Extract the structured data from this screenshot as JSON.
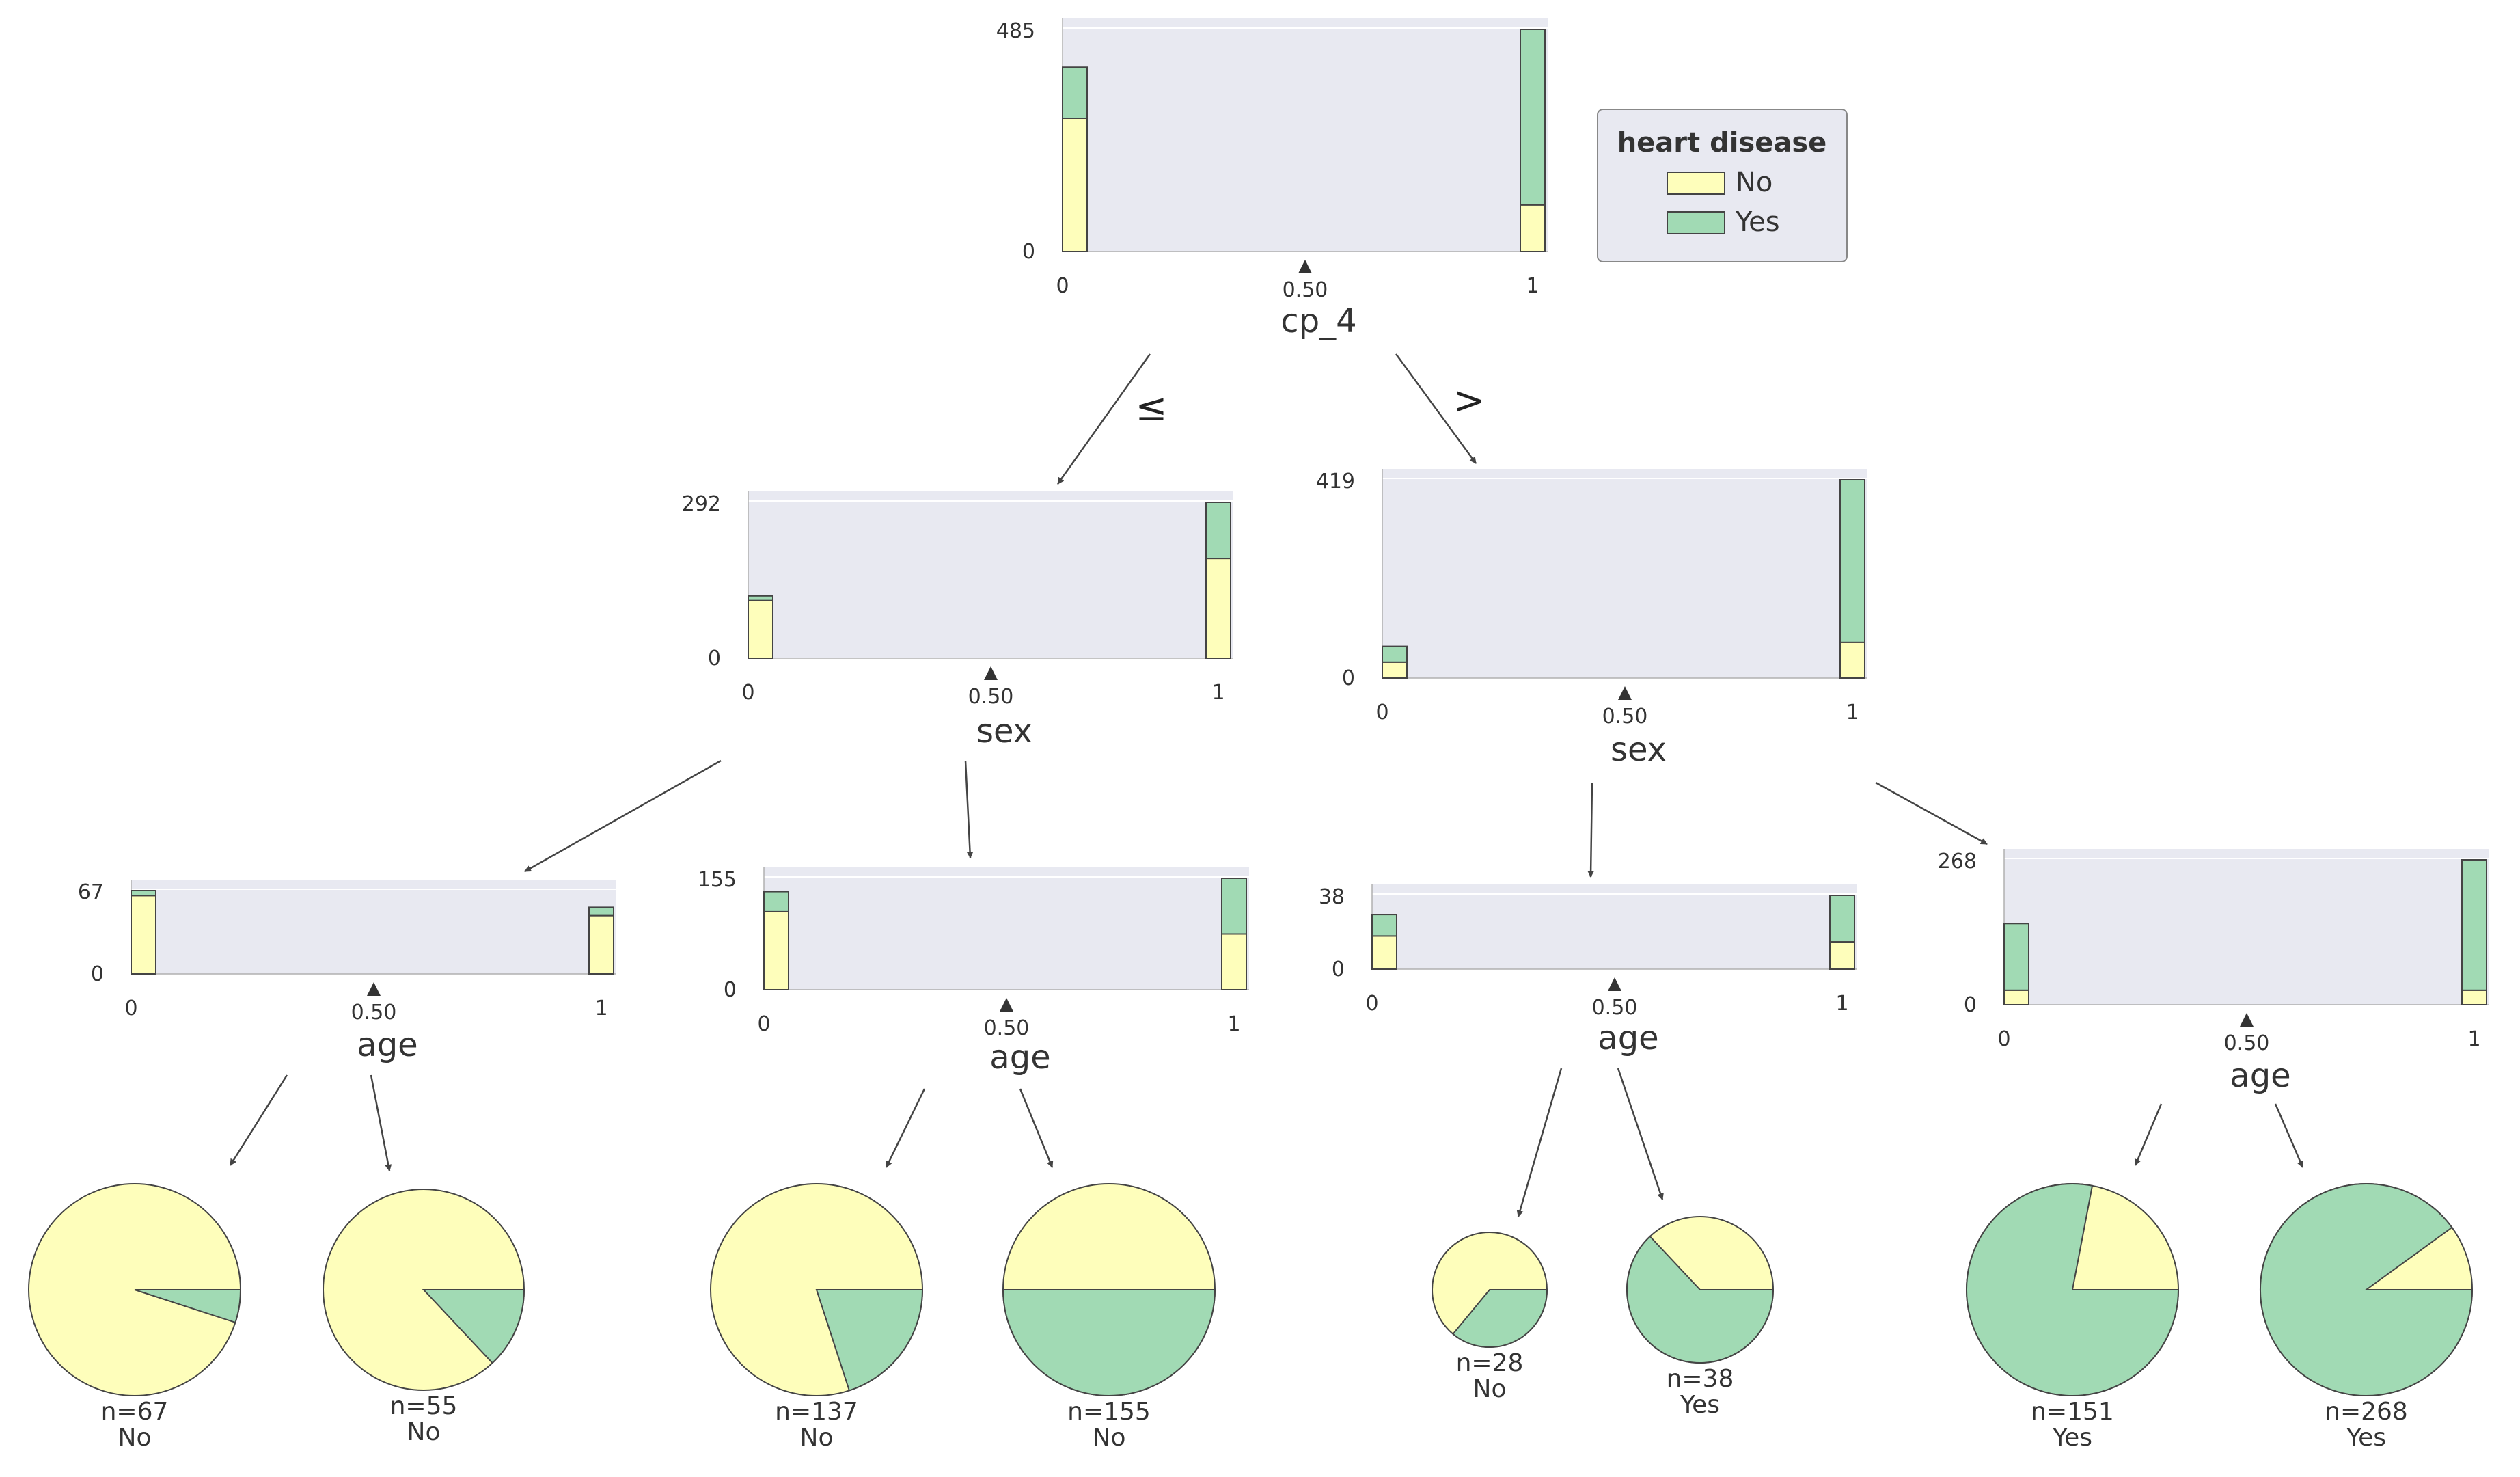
{
  "colors": {
    "No": "#fefebb",
    "Yes": "#a1dab4",
    "panel": "#e8e9f1",
    "edge": "#444444",
    "outline": "#444444"
  },
  "legend": {
    "title": "heart disease",
    "items": [
      {
        "label": "No",
        "color": "#fefebb"
      },
      {
        "label": "Yes",
        "color": "#a1dab4"
      }
    ]
  },
  "edge_labels": {
    "left": "≤",
    "right": ">"
  },
  "nodes": {
    "root": {
      "feature": "cp_4",
      "split": "0.50",
      "ymax": "485",
      "ymin": "0",
      "xmin": "0",
      "xmax": "1",
      "bars": [
        {
          "no": 0.6,
          "yes": 0.23
        },
        {
          "no": 0.21,
          "yes": 0.79
        }
      ]
    },
    "left": {
      "feature": "sex",
      "split": "0.50",
      "ymax": "292",
      "ymin": "0",
      "xmin": "0",
      "xmax": "1",
      "bars": [
        {
          "no": 0.37,
          "yes": 0.03
        },
        {
          "no": 0.64,
          "yes": 0.36
        }
      ]
    },
    "right": {
      "feature": "sex",
      "split": "0.50",
      "ymax": "419",
      "ymin": "0",
      "xmin": "0",
      "xmax": "1",
      "bars": [
        {
          "no": 0.08,
          "yes": 0.08
        },
        {
          "no": 0.18,
          "yes": 0.82
        }
      ]
    },
    "ll": {
      "feature": "age",
      "split": "0.50",
      "ymax": "67",
      "ymin": "0",
      "xmin": "0",
      "xmax": "1",
      "bars": [
        {
          "no": 0.94,
          "yes": 0.06
        },
        {
          "no": 0.7,
          "yes": 0.1
        }
      ]
    },
    "lr": {
      "feature": "age",
      "split": "0.50",
      "ymax": "155",
      "ymin": "0",
      "xmin": "0",
      "xmax": "1",
      "bars": [
        {
          "no": 0.7,
          "yes": 0.18
        },
        {
          "no": 0.5,
          "yes": 0.5
        }
      ]
    },
    "rl": {
      "feature": "age",
      "split": "0.50",
      "ymax": "38",
      "ymin": "0",
      "xmin": "0",
      "xmax": "1",
      "bars": [
        {
          "no": 0.45,
          "yes": 0.29
        },
        {
          "no": 0.37,
          "yes": 0.63
        }
      ]
    },
    "rr": {
      "feature": "age",
      "split": "0.50",
      "ymax": "268",
      "ymin": "0",
      "xmin": "0",
      "xmax": "1",
      "bars": [
        {
          "no": 0.1,
          "yes": 0.46
        },
        {
          "no": 0.1,
          "yes": 0.9
        }
      ]
    }
  },
  "leaves": [
    {
      "n": "n=67",
      "cls": "No",
      "yes_frac": 0.05,
      "size": "large"
    },
    {
      "n": "n=55",
      "cls": "No",
      "yes_frac": 0.13,
      "size": "large"
    },
    {
      "n": "n=137",
      "cls": "No",
      "yes_frac": 0.2,
      "size": "large"
    },
    {
      "n": "n=155",
      "cls": "No",
      "yes_frac": 0.5,
      "size": "large"
    },
    {
      "n": "n=28",
      "cls": "No",
      "yes_frac": 0.36,
      "size": "small"
    },
    {
      "n": "n=38",
      "cls": "Yes",
      "yes_frac": 0.63,
      "size": "medium"
    },
    {
      "n": "n=151",
      "cls": "Yes",
      "yes_frac": 0.78,
      "size": "large"
    },
    {
      "n": "n=268",
      "cls": "Yes",
      "yes_frac": 0.9,
      "size": "large"
    }
  ]
}
